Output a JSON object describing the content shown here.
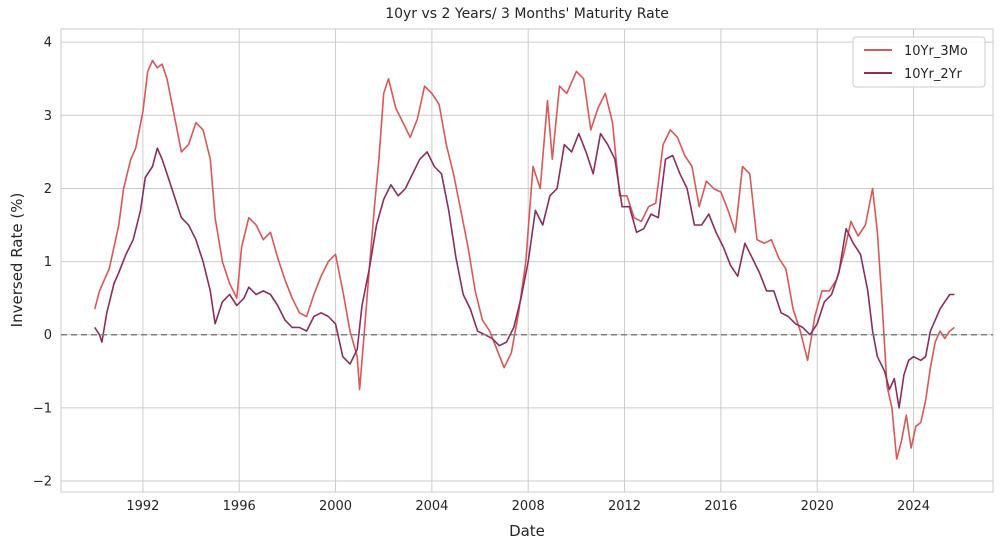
{
  "chart_data": {
    "type": "line",
    "title": "10yr vs 2 Years/ 3 Months' Maturity Rate",
    "xlabel": "Date",
    "ylabel": "Inversed Rate (%)",
    "xlim": [
      1988.6,
      2027.3
    ],
    "ylim": [
      -2.15,
      4.18
    ],
    "x_ticks": [
      1992,
      1996,
      2000,
      2004,
      2008,
      2012,
      2016,
      2020,
      2024
    ],
    "x_tick_labels": [
      "1992",
      "1996",
      "2000",
      "2004",
      "2008",
      "2012",
      "2016",
      "2020",
      "2024"
    ],
    "y_ticks": [
      -2,
      -1,
      0,
      1,
      2,
      3,
      4
    ],
    "y_tick_labels": [
      "−2",
      "−1",
      "0",
      "1",
      "2",
      "3",
      "4"
    ],
    "grid": true,
    "legend_position": "top-right",
    "reference_line": {
      "y": 0,
      "style": "dashed",
      "color": "#808080"
    },
    "series": [
      {
        "name": "10Yr_3Mo",
        "color": "#dd5757",
        "points": [
          [
            1990.0,
            0.35
          ],
          [
            1990.2,
            0.6
          ],
          [
            1990.4,
            0.75
          ],
          [
            1990.6,
            0.9
          ],
          [
            1990.8,
            1.2
          ],
          [
            1991.0,
            1.5
          ],
          [
            1991.2,
            2.0
          ],
          [
            1991.5,
            2.4
          ],
          [
            1991.7,
            2.55
          ],
          [
            1992.0,
            3.05
          ],
          [
            1992.2,
            3.6
          ],
          [
            1992.4,
            3.75
          ],
          [
            1992.6,
            3.65
          ],
          [
            1992.8,
            3.7
          ],
          [
            1993.0,
            3.5
          ],
          [
            1993.3,
            3.0
          ],
          [
            1993.6,
            2.5
          ],
          [
            1993.9,
            2.6
          ],
          [
            1994.2,
            2.9
          ],
          [
            1994.5,
            2.8
          ],
          [
            1994.8,
            2.4
          ],
          [
            1995.0,
            1.6
          ],
          [
            1995.3,
            1.0
          ],
          [
            1995.6,
            0.7
          ],
          [
            1995.9,
            0.5
          ],
          [
            1996.1,
            1.2
          ],
          [
            1996.4,
            1.6
          ],
          [
            1996.7,
            1.5
          ],
          [
            1997.0,
            1.3
          ],
          [
            1997.3,
            1.4
          ],
          [
            1997.6,
            1.05
          ],
          [
            1997.9,
            0.75
          ],
          [
            1998.2,
            0.5
          ],
          [
            1998.5,
            0.3
          ],
          [
            1998.8,
            0.25
          ],
          [
            1999.1,
            0.55
          ],
          [
            1999.4,
            0.8
          ],
          [
            1999.7,
            1.0
          ],
          [
            2000.0,
            1.1
          ],
          [
            2000.3,
            0.6
          ],
          [
            2000.6,
            0.05
          ],
          [
            2000.9,
            -0.3
          ],
          [
            2001.0,
            -0.75
          ],
          [
            2001.2,
            0.05
          ],
          [
            2001.4,
            0.9
          ],
          [
            2001.6,
            1.7
          ],
          [
            2001.8,
            2.4
          ],
          [
            2002.0,
            3.3
          ],
          [
            2002.2,
            3.5
          ],
          [
            2002.5,
            3.1
          ],
          [
            2002.8,
            2.9
          ],
          [
            2003.1,
            2.7
          ],
          [
            2003.4,
            2.95
          ],
          [
            2003.7,
            3.4
          ],
          [
            2004.0,
            3.3
          ],
          [
            2004.3,
            3.15
          ],
          [
            2004.6,
            2.6
          ],
          [
            2004.9,
            2.2
          ],
          [
            2005.2,
            1.7
          ],
          [
            2005.5,
            1.2
          ],
          [
            2005.8,
            0.6
          ],
          [
            2006.1,
            0.2
          ],
          [
            2006.4,
            0.05
          ],
          [
            2006.7,
            -0.2
          ],
          [
            2007.0,
            -0.45
          ],
          [
            2007.3,
            -0.25
          ],
          [
            2007.6,
            0.3
          ],
          [
            2007.9,
            1.0
          ],
          [
            2008.2,
            2.3
          ],
          [
            2008.5,
            2.0
          ],
          [
            2008.8,
            3.2
          ],
          [
            2009.0,
            2.4
          ],
          [
            2009.3,
            3.4
          ],
          [
            2009.6,
            3.3
          ],
          [
            2010.0,
            3.6
          ],
          [
            2010.3,
            3.5
          ],
          [
            2010.6,
            2.8
          ],
          [
            2010.9,
            3.1
          ],
          [
            2011.2,
            3.3
          ],
          [
            2011.5,
            2.9
          ],
          [
            2011.8,
            1.9
          ],
          [
            2012.1,
            1.9
          ],
          [
            2012.4,
            1.6
          ],
          [
            2012.7,
            1.55
          ],
          [
            2013.0,
            1.75
          ],
          [
            2013.3,
            1.8
          ],
          [
            2013.6,
            2.6
          ],
          [
            2013.9,
            2.8
          ],
          [
            2014.2,
            2.7
          ],
          [
            2014.5,
            2.45
          ],
          [
            2014.8,
            2.3
          ],
          [
            2015.1,
            1.75
          ],
          [
            2015.4,
            2.1
          ],
          [
            2015.7,
            2.0
          ],
          [
            2016.0,
            1.95
          ],
          [
            2016.3,
            1.7
          ],
          [
            2016.6,
            1.4
          ],
          [
            2016.9,
            2.3
          ],
          [
            2017.2,
            2.2
          ],
          [
            2017.5,
            1.3
          ],
          [
            2017.8,
            1.25
          ],
          [
            2018.1,
            1.3
          ],
          [
            2018.4,
            1.05
          ],
          [
            2018.7,
            0.9
          ],
          [
            2019.0,
            0.35
          ],
          [
            2019.3,
            0.05
          ],
          [
            2019.6,
            -0.35
          ],
          [
            2019.9,
            0.25
          ],
          [
            2020.2,
            0.6
          ],
          [
            2020.5,
            0.6
          ],
          [
            2020.8,
            0.75
          ],
          [
            2021.1,
            1.1
          ],
          [
            2021.4,
            1.55
          ],
          [
            2021.7,
            1.35
          ],
          [
            2022.0,
            1.5
          ],
          [
            2022.3,
            2.0
          ],
          [
            2022.5,
            1.4
          ],
          [
            2022.7,
            0.4
          ],
          [
            2022.9,
            -0.7
          ],
          [
            2023.1,
            -1.0
          ],
          [
            2023.3,
            -1.7
          ],
          [
            2023.5,
            -1.45
          ],
          [
            2023.7,
            -1.1
          ],
          [
            2023.9,
            -1.55
          ],
          [
            2024.1,
            -1.25
          ],
          [
            2024.3,
            -1.2
          ],
          [
            2024.5,
            -0.9
          ],
          [
            2024.7,
            -0.45
          ],
          [
            2024.9,
            -0.1
          ],
          [
            2025.1,
            0.05
          ],
          [
            2025.3,
            -0.05
          ],
          [
            2025.5,
            0.05
          ],
          [
            2025.7,
            0.1
          ]
        ]
      },
      {
        "name": "10Yr_2Yr",
        "color": "#8c2d5f",
        "points": [
          [
            1990.0,
            0.1
          ],
          [
            1990.2,
            0.0
          ],
          [
            1990.3,
            -0.1
          ],
          [
            1990.5,
            0.3
          ],
          [
            1990.8,
            0.7
          ],
          [
            1991.0,
            0.85
          ],
          [
            1991.3,
            1.1
          ],
          [
            1991.6,
            1.3
          ],
          [
            1991.9,
            1.7
          ],
          [
            1992.1,
            2.15
          ],
          [
            1992.4,
            2.3
          ],
          [
            1992.6,
            2.55
          ],
          [
            1992.8,
            2.4
          ],
          [
            1993.0,
            2.2
          ],
          [
            1993.3,
            1.9
          ],
          [
            1993.6,
            1.6
          ],
          [
            1993.9,
            1.5
          ],
          [
            1994.2,
            1.3
          ],
          [
            1994.5,
            1.0
          ],
          [
            1994.8,
            0.6
          ],
          [
            1995.0,
            0.15
          ],
          [
            1995.3,
            0.45
          ],
          [
            1995.6,
            0.55
          ],
          [
            1995.9,
            0.4
          ],
          [
            1996.2,
            0.5
          ],
          [
            1996.4,
            0.65
          ],
          [
            1996.7,
            0.55
          ],
          [
            1997.0,
            0.6
          ],
          [
            1997.3,
            0.55
          ],
          [
            1997.6,
            0.4
          ],
          [
            1997.9,
            0.2
          ],
          [
            1998.2,
            0.1
          ],
          [
            1998.5,
            0.1
          ],
          [
            1998.8,
            0.05
          ],
          [
            1999.1,
            0.25
          ],
          [
            1999.4,
            0.3
          ],
          [
            1999.7,
            0.25
          ],
          [
            2000.0,
            0.15
          ],
          [
            2000.3,
            -0.3
          ],
          [
            2000.6,
            -0.4
          ],
          [
            2000.9,
            -0.2
          ],
          [
            2001.1,
            0.4
          ],
          [
            2001.4,
            0.9
          ],
          [
            2001.7,
            1.5
          ],
          [
            2002.0,
            1.85
          ],
          [
            2002.3,
            2.05
          ],
          [
            2002.6,
            1.9
          ],
          [
            2002.9,
            2.0
          ],
          [
            2003.2,
            2.2
          ],
          [
            2003.5,
            2.4
          ],
          [
            2003.8,
            2.5
          ],
          [
            2004.1,
            2.3
          ],
          [
            2004.4,
            2.2
          ],
          [
            2004.7,
            1.7
          ],
          [
            2005.0,
            1.05
          ],
          [
            2005.3,
            0.55
          ],
          [
            2005.6,
            0.35
          ],
          [
            2005.9,
            0.05
          ],
          [
            2006.2,
            0.0
          ],
          [
            2006.5,
            -0.05
          ],
          [
            2006.8,
            -0.15
          ],
          [
            2007.1,
            -0.1
          ],
          [
            2007.4,
            0.1
          ],
          [
            2007.7,
            0.5
          ],
          [
            2008.0,
            1.0
          ],
          [
            2008.3,
            1.7
          ],
          [
            2008.6,
            1.5
          ],
          [
            2008.9,
            1.9
          ],
          [
            2009.2,
            2.0
          ],
          [
            2009.5,
            2.6
          ],
          [
            2009.8,
            2.5
          ],
          [
            2010.1,
            2.75
          ],
          [
            2010.4,
            2.5
          ],
          [
            2010.7,
            2.2
          ],
          [
            2011.0,
            2.75
          ],
          [
            2011.3,
            2.6
          ],
          [
            2011.6,
            2.4
          ],
          [
            2011.9,
            1.75
          ],
          [
            2012.2,
            1.75
          ],
          [
            2012.5,
            1.4
          ],
          [
            2012.8,
            1.45
          ],
          [
            2013.1,
            1.65
          ],
          [
            2013.4,
            1.6
          ],
          [
            2013.7,
            2.4
          ],
          [
            2014.0,
            2.45
          ],
          [
            2014.3,
            2.2
          ],
          [
            2014.6,
            2.0
          ],
          [
            2014.9,
            1.5
          ],
          [
            2015.2,
            1.5
          ],
          [
            2015.5,
            1.65
          ],
          [
            2015.8,
            1.4
          ],
          [
            2016.1,
            1.2
          ],
          [
            2016.4,
            0.95
          ],
          [
            2016.7,
            0.8
          ],
          [
            2017.0,
            1.25
          ],
          [
            2017.3,
            1.05
          ],
          [
            2017.6,
            0.85
          ],
          [
            2017.9,
            0.6
          ],
          [
            2018.2,
            0.6
          ],
          [
            2018.5,
            0.3
          ],
          [
            2018.8,
            0.25
          ],
          [
            2019.1,
            0.15
          ],
          [
            2019.4,
            0.1
          ],
          [
            2019.7,
            0.0
          ],
          [
            2020.0,
            0.15
          ],
          [
            2020.3,
            0.45
          ],
          [
            2020.6,
            0.55
          ],
          [
            2020.9,
            0.85
          ],
          [
            2021.2,
            1.45
          ],
          [
            2021.5,
            1.25
          ],
          [
            2021.8,
            1.1
          ],
          [
            2022.1,
            0.6
          ],
          [
            2022.3,
            0.05
          ],
          [
            2022.5,
            -0.3
          ],
          [
            2022.8,
            -0.5
          ],
          [
            2023.0,
            -0.75
          ],
          [
            2023.2,
            -0.6
          ],
          [
            2023.4,
            -1.0
          ],
          [
            2023.6,
            -0.55
          ],
          [
            2023.8,
            -0.35
          ],
          [
            2024.0,
            -0.3
          ],
          [
            2024.3,
            -0.35
          ],
          [
            2024.5,
            -0.3
          ],
          [
            2024.7,
            0.05
          ],
          [
            2024.9,
            0.2
          ],
          [
            2025.1,
            0.35
          ],
          [
            2025.3,
            0.45
          ],
          [
            2025.5,
            0.55
          ],
          [
            2025.7,
            0.55
          ]
        ]
      }
    ]
  }
}
